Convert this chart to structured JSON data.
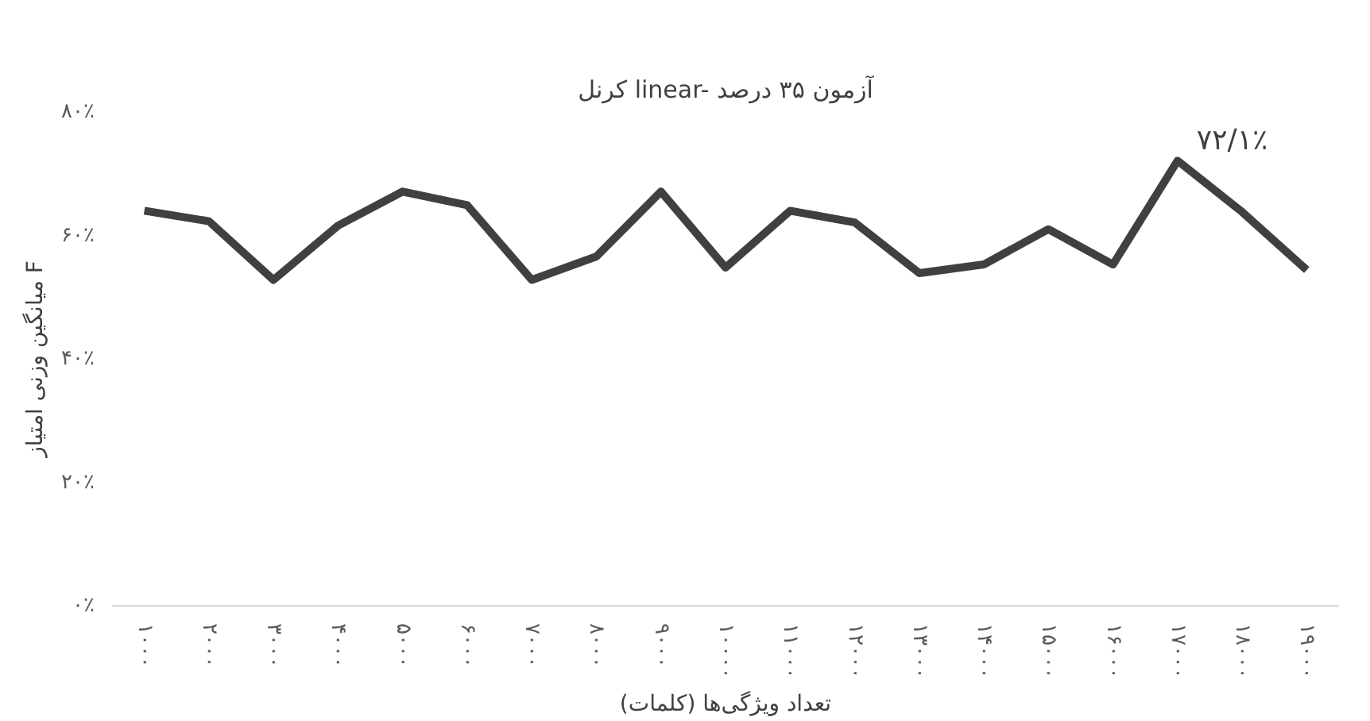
{
  "chart_data": {
    "type": "line",
    "title": "کرنل linear- آزمون ۳۵ درصد",
    "xlabel": "تعداد ویژگی‌ها (کلمات)",
    "ylabel": "میانگین وزنی امتیاز F",
    "categories": [
      "۱۰۰۰",
      "۲۰۰۰",
      "۳۰۰۰",
      "۴۰۰۰",
      "۵۰۰۰",
      "۶۰۰۰",
      "۷۰۰۰",
      "۸۰۰۰",
      "۹۰۰۰",
      "۱۰۰۰۰",
      "۱۱۰۰۰",
      "۱۲۰۰۰",
      "۱۳۰۰۰",
      "۱۴۰۰۰",
      "۱۵۰۰۰",
      "۱۶۰۰۰",
      "۱۷۰۰۰",
      "۱۸۰۰۰",
      "۱۹۰۰۰"
    ],
    "series": [
      {
        "color": "#404040",
        "values": [
          64.0,
          62.3,
          52.8,
          61.6,
          67.1,
          64.9,
          52.8,
          56.6,
          67.1,
          54.8,
          64.0,
          62.1,
          53.9,
          55.3,
          61.0,
          55.3,
          72.1,
          63.8,
          54.4
        ]
      }
    ],
    "ylim": [
      0,
      80
    ],
    "yticks": [
      {
        "value": 0,
        "label": "۰٪"
      },
      {
        "value": 20,
        "label": "۲۰٪"
      },
      {
        "value": 40,
        "label": "۴۰٪"
      },
      {
        "value": 60,
        "label": "۶۰٪"
      },
      {
        "value": 80,
        "label": "۸۰٪"
      }
    ],
    "annotations": [
      {
        "text": "۷۲/۱٪",
        "x": "۱۷۰۰۰",
        "y": 72.1
      }
    ],
    "grid": false,
    "marker": "none",
    "line_style": "solid"
  }
}
